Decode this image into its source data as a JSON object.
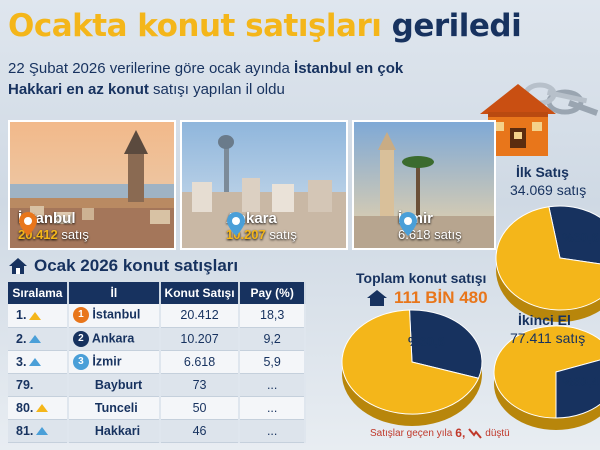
{
  "headline": {
    "part1": "Ocakta konut satışları",
    "part2": "geriledi"
  },
  "subtitle": {
    "s1": "22 Şubat 2026 verilerine göre ocak ayında ",
    "s2": "İstanbul en çok",
    "s3": "Hakkari en az konut",
    "s4": " satışı yapılan il oldu"
  },
  "cities": [
    {
      "name": "İstanbul",
      "sales": "20.412",
      "unit": "satış"
    },
    {
      "name": "Ankara",
      "sales": "10.207",
      "unit": "satış"
    },
    {
      "name": "İzmir",
      "sales": "6.618",
      "unit": "satış"
    }
  ],
  "table": {
    "title": "Ocak 2026 konut satışları",
    "headers": [
      "Sıralama",
      "İl",
      "Konut Satışı",
      "Pay (%)"
    ],
    "rows": [
      {
        "rank": "1.",
        "city": "İstanbul",
        "sales": "20.412",
        "share": "18,3"
      },
      {
        "rank": "2.",
        "city": "Ankara",
        "sales": "10.207",
        "share": "9,2"
      },
      {
        "rank": "3.",
        "city": "İzmir",
        "sales": "6.618",
        "share": "5,9"
      },
      {
        "rank": "79.",
        "city": "Bayburt",
        "sales": "73",
        "share": "..."
      },
      {
        "rank": "80.",
        "city": "Tunceli",
        "sales": "50",
        "share": "..."
      },
      {
        "rank": "81.",
        "city": "Hakkari",
        "sales": "46",
        "share": "..."
      }
    ],
    "medals": [
      "1",
      "2",
      "3"
    ]
  },
  "total": {
    "title": "Toplam konut satışı",
    "value": "111 BİN 480"
  },
  "footnote": {
    "pre": "Satışlar geçen yıla",
    "fig": "6,",
    "post": "düştü"
  },
  "chart_data": [
    {
      "type": "pie",
      "title": "İlk Satış",
      "subtitle": "34.069 satış",
      "categories": [
        "İlk Satış"
      ],
      "values": [
        30.6
      ],
      "labels": [
        "%30,6"
      ]
    },
    {
      "type": "pie",
      "title": "Toplam konut satışı",
      "subtitle": "111 BİN 480",
      "categories": [
        "İlk Satış",
        "İkinci El"
      ],
      "values": [
        30.6,
        69.4
      ],
      "labels": [
        "%30,6",
        "%69,4"
      ]
    },
    {
      "type": "pie",
      "title": "İkinci El",
      "subtitle": "77.411 satış",
      "categories": [
        "İkinci El"
      ],
      "values": [
        69.4
      ],
      "labels": [
        "%69,4"
      ]
    }
  ],
  "colors": {
    "navy": "#17325f",
    "yellow": "#f4b61a",
    "orange": "#e8761b",
    "pin": "#4a9fd8"
  }
}
